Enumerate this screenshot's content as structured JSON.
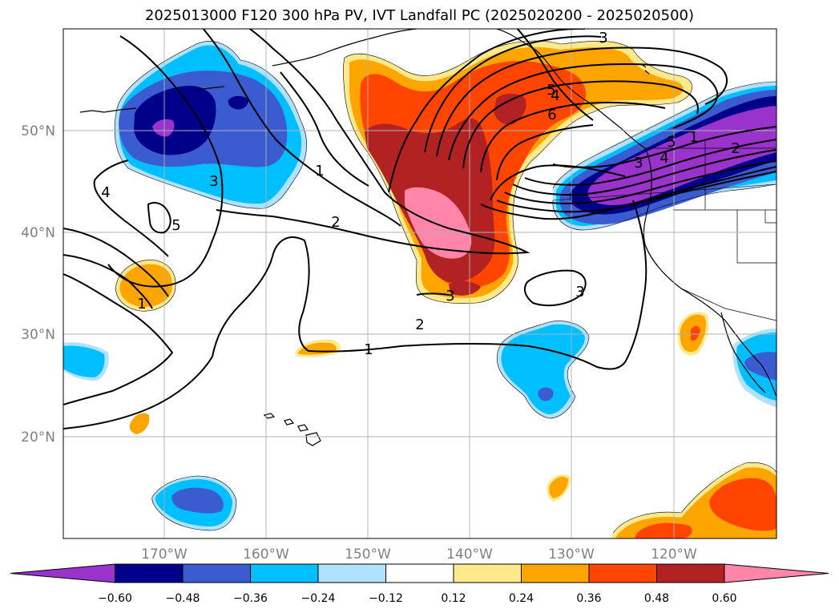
{
  "title": "2025013000 F120 300 hPa PV, IVT Landfall PC (2025020200 - 2025020500)",
  "lat_labels": [
    "50°N",
    "40°N",
    "30°N",
    "20°N"
  ],
  "lon_labels": [
    "170°W",
    "160°W",
    "150°W",
    "140°W",
    "130°W",
    "120°W"
  ],
  "colorbar": {
    "ticks": [
      "−0.60",
      "−0.48",
      "−0.36",
      "−0.24",
      "−0.12",
      "0.12",
      "0.24",
      "0.36",
      "0.48",
      "0.60"
    ],
    "colors": [
      "#9933cc",
      "#00008b",
      "#3b5bd1",
      "#00bfff",
      "#b0e2ff",
      "#ffffff",
      "#ffe98a",
      "#ffa500",
      "#ff4500",
      "#b22222",
      "#ff85aa"
    ]
  },
  "contour_labels": [
    "3",
    "4",
    "5",
    "6",
    "1",
    "2",
    "3",
    "4",
    "5",
    "1",
    "2",
    "1",
    "3",
    "4",
    "5",
    "2",
    "1",
    "3",
    "3"
  ],
  "colors": {
    "pos_pale": "#ffe98a",
    "pos_orange": "#ffa500",
    "pos_red": "#ff4500",
    "pos_dark": "#b22222",
    "pos_pink": "#ff85aa",
    "neg_light": "#b0e2ff",
    "neg_cyan": "#00bfff",
    "neg_blue": "#3b5bd1",
    "neg_navy": "#00008b",
    "neg_purple": "#9933cc"
  }
}
